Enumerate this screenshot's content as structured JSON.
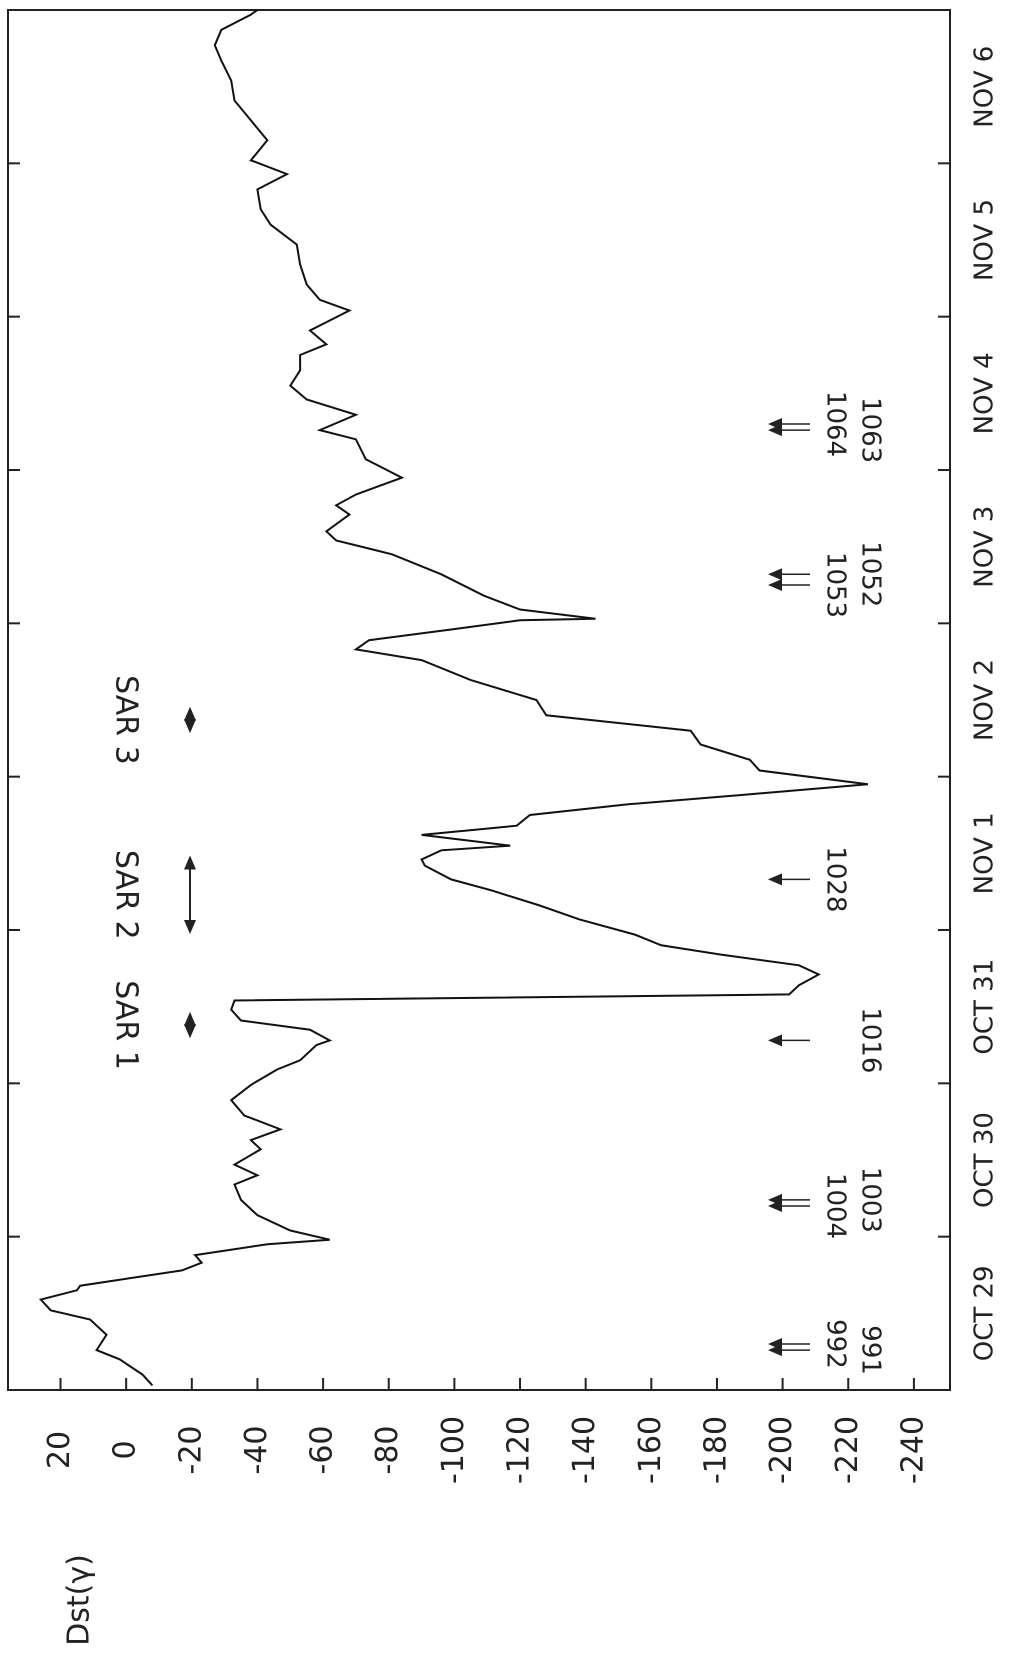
{
  "chart_data": {
    "type": "line",
    "ylabel": "Dst(γ)",
    "color": "#111111",
    "xlim": [
      0,
      9
    ],
    "xticks": [
      {
        "value": 0.5,
        "label": "OCT 29"
      },
      {
        "value": 1.5,
        "label": "OCT 30"
      },
      {
        "value": 2.5,
        "label": "OCT 31"
      },
      {
        "value": 3.5,
        "label": "NOV 1"
      },
      {
        "value": 4.5,
        "label": "NOV 2"
      },
      {
        "value": 5.5,
        "label": "NOV 3"
      },
      {
        "value": 6.5,
        "label": "NOV 4"
      },
      {
        "value": 7.5,
        "label": "NOV 5"
      },
      {
        "value": 8.5,
        "label": "NOV 6"
      }
    ],
    "xminorticks": [
      0,
      1,
      2,
      3,
      4,
      5,
      6,
      7,
      8,
      9
    ],
    "ylim": [
      -251,
      36
    ],
    "yticks": [
      20,
      0,
      -20,
      -40,
      -60,
      -80,
      -100,
      -120,
      -140,
      -160,
      -180,
      -200,
      -220,
      -240
    ],
    "x": [
      0.03,
      0.1,
      0.2,
      0.26,
      0.36,
      0.46,
      0.52,
      0.59,
      0.65,
      0.68,
      0.78,
      0.83,
      0.88,
      0.95,
      0.98,
      1.04,
      1.14,
      1.24,
      1.34,
      1.4,
      1.47,
      1.57,
      1.63,
      1.7,
      1.79,
      1.89,
      1.99,
      2.09,
      2.15,
      2.25,
      2.28,
      2.35,
      2.41,
      2.48,
      2.54,
      2.58,
      2.64,
      2.71,
      2.77,
      2.84,
      2.9,
      2.97,
      3.07,
      3.16,
      3.26,
      3.33,
      3.42,
      3.46,
      3.52,
      3.55,
      3.62,
      3.68,
      3.75,
      3.82,
      3.88,
      3.95,
      4.04,
      4.11,
      4.21,
      4.3,
      4.4,
      4.5,
      4.63,
      4.76,
      4.83,
      4.89,
      4.96,
      5.02,
      5.03,
      5.09,
      5.18,
      5.32,
      5.45,
      5.54,
      5.6,
      5.71,
      5.77,
      5.84,
      5.95,
      6.07,
      6.2,
      6.26,
      6.36,
      6.46,
      6.55,
      6.65,
      6.75,
      6.82,
      6.91,
      7.04,
      7.11,
      7.21,
      7.34,
      7.47,
      7.6,
      7.7,
      7.83,
      7.93,
      8.02,
      8.15,
      8.28,
      8.41,
      8.54,
      8.67,
      8.77,
      8.87,
      8.97,
      9.0
    ],
    "values": [
      -8,
      -5,
      2,
      9,
      6,
      11,
      23,
      26,
      15,
      14,
      -17,
      -23,
      -21,
      -43,
      -62,
      -50,
      -40,
      -35,
      -33,
      -40,
      -33,
      -41,
      -38,
      -47,
      -36,
      -32,
      -38,
      -46,
      -53,
      -58,
      -62,
      -56,
      -35,
      -32,
      -33,
      -202,
      -205,
      -211,
      -205,
      -181,
      -163,
      -155,
      -138,
      -126,
      -111,
      -99,
      -91,
      -90,
      -96,
      -117,
      -90,
      -119,
      -123,
      -153,
      -187,
      -226,
      -193,
      -190,
      -175,
      -172,
      -128,
      -125,
      -105,
      -90,
      -70,
      -74,
      -99,
      -120,
      -143,
      -120,
      -109,
      -96,
      -81,
      -64,
      -61,
      -68,
      -64,
      -70,
      -84,
      -73,
      -70,
      -59,
      -70,
      -55,
      -50,
      -53,
      -53,
      -61,
      -56,
      -68,
      -59,
      -55,
      -53,
      -52,
      -44,
      -41,
      -40,
      -49,
      -38,
      -43,
      -38,
      -33,
      -32,
      -29,
      -27,
      -29,
      -38,
      -40
    ],
    "periods": [
      {
        "label": "SAR 1",
        "start": 2.32,
        "end": 2.44
      },
      {
        "label": "SAR 2",
        "start": 3.0,
        "end": 3.46
      },
      {
        "label": "SAR 3",
        "start": 4.31,
        "end": 4.43
      }
    ],
    "orbits": [
      {
        "label": "991",
        "x": 0.26
      },
      {
        "label": "992",
        "x": 0.3
      },
      {
        "label": "1003",
        "x": 1.24
      },
      {
        "label": "1004",
        "x": 1.2
      },
      {
        "label": "1016",
        "x": 2.28
      },
      {
        "label": "1028",
        "x": 3.33
      },
      {
        "label": "1052",
        "x": 5.32
      },
      {
        "label": "1053",
        "x": 5.25
      },
      {
        "label": "1063",
        "x": 6.26
      },
      {
        "label": "1064",
        "x": 6.3
      }
    ]
  }
}
